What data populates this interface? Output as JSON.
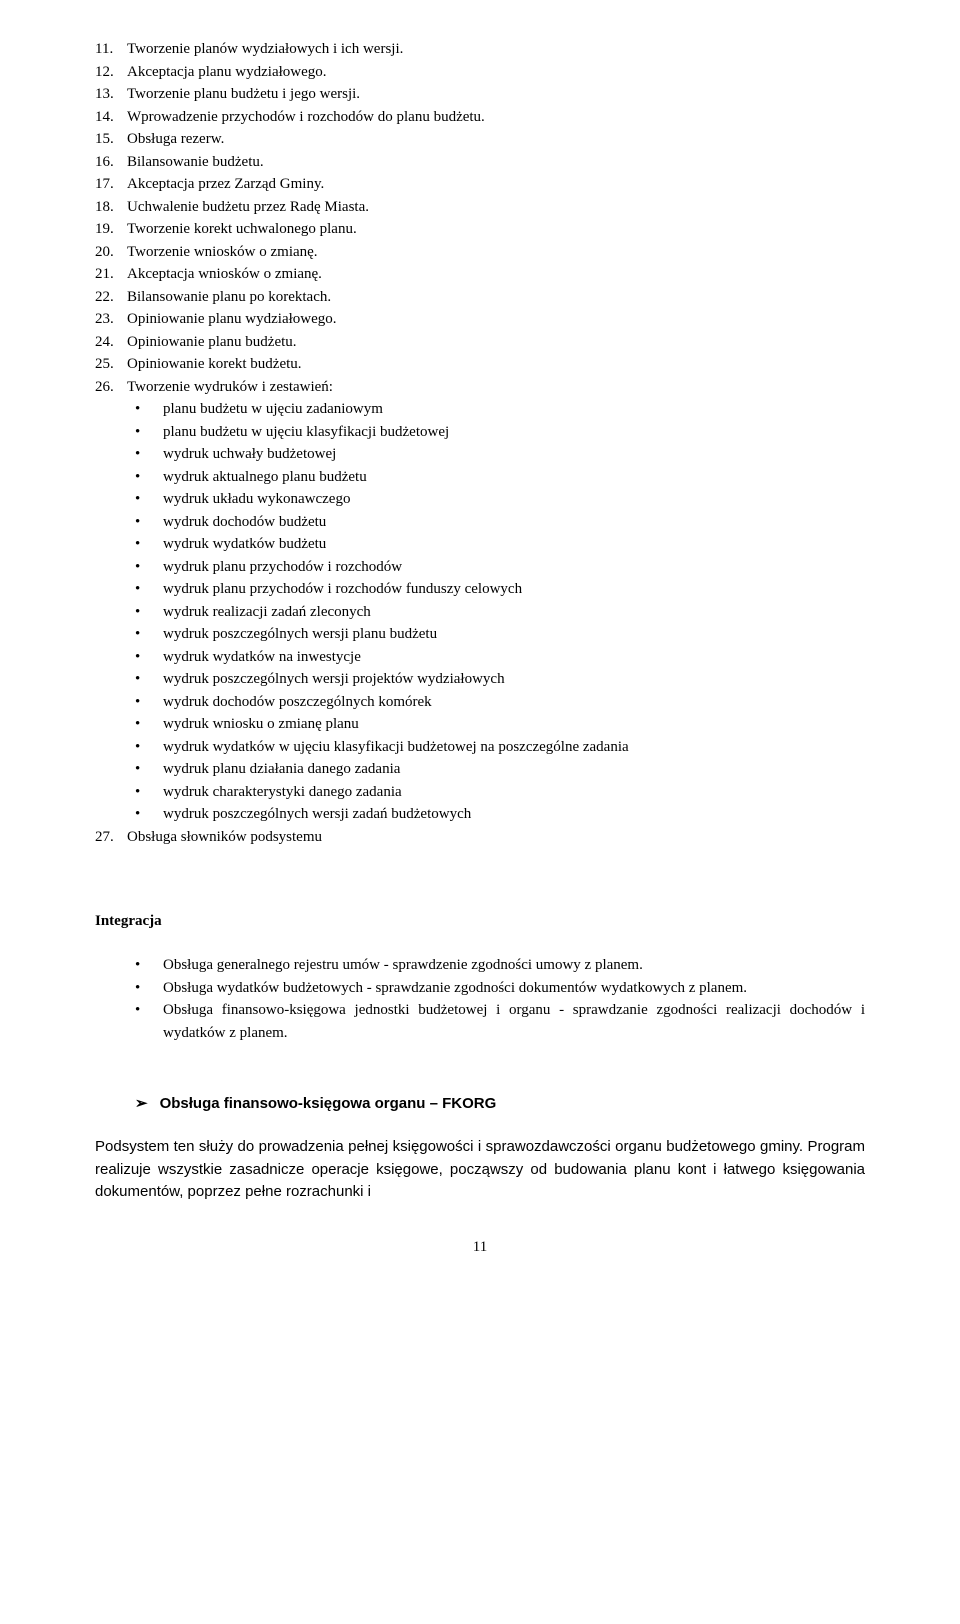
{
  "numberedItems": [
    {
      "num": "11.",
      "text": "Tworzenie planów wydziałowych i ich wersji."
    },
    {
      "num": "12.",
      "text": "Akceptacja planu wydziałowego."
    },
    {
      "num": "13.",
      "text": "Tworzenie planu budżetu i jego wersji."
    },
    {
      "num": "14.",
      "text": "Wprowadzenie przychodów i rozchodów do planu budżetu."
    },
    {
      "num": "15.",
      "text": "Obsługa rezerw."
    },
    {
      "num": "16.",
      "text": "Bilansowanie budżetu."
    },
    {
      "num": "17.",
      "text": "Akceptacja przez Zarząd Gminy."
    },
    {
      "num": "18.",
      "text": "Uchwalenie budżetu przez Radę Miasta."
    },
    {
      "num": "19.",
      "text": "Tworzenie korekt uchwalonego planu."
    },
    {
      "num": "20.",
      "text": "Tworzenie wniosków o zmianę."
    },
    {
      "num": "21.",
      "text": "Akceptacja wniosków o zmianę."
    },
    {
      "num": "22.",
      "text": "Bilansowanie planu po korektach."
    },
    {
      "num": "23.",
      "text": "Opiniowanie planu wydziałowego."
    },
    {
      "num": "24.",
      "text": "Opiniowanie planu budżetu."
    },
    {
      "num": "25.",
      "text": "Opiniowanie korekt budżetu."
    },
    {
      "num": "26.",
      "text": "Tworzenie wydruków i zestawień:"
    }
  ],
  "bulletItems": [
    "planu budżetu w ujęciu zadaniowym",
    "planu budżetu w ujęciu klasyfikacji budżetowej",
    "wydruk uchwały budżetowej",
    "wydruk aktualnego planu budżetu",
    "wydruk układu wykonawczego",
    "wydruk dochodów budżetu",
    "wydruk wydatków budżetu",
    "wydruk planu przychodów i rozchodów",
    "wydruk planu przychodów i rozchodów funduszy celowych",
    "wydruk realizacji zadań zleconych",
    "wydruk poszczególnych wersji planu budżetu",
    "wydruk wydatków na inwestycje",
    "wydruk poszczególnych wersji projektów wydziałowych",
    "wydruk dochodów poszczególnych komórek",
    "wydruk wniosku o zmianę planu",
    "wydruk wydatków w ujęciu klasyfikacji budżetowej na poszczególne zadania",
    "wydruk planu działania danego zadania",
    "wydruk charakterystyki danego zadania",
    "wydruk poszczególnych wersji zadań budżetowych"
  ],
  "finalNumberedItem": {
    "num": "27.",
    "text": "Obsługa słowników podsystemu"
  },
  "integrationHeading": "Integracja",
  "integrationItems": [
    "Obsługa generalnego rejestru umów - sprawdzenie zgodności umowy z planem.",
    "Obsługa wydatków budżetowych - sprawdzanie zgodności dokumentów wydatkowych z planem.",
    "Obsługa finansowo-księgowa jednostki budżetowej i organu - sprawdzanie zgodności realizacji dochodów i wydatków z planem."
  ],
  "arrowHeading": "Obsługa finansowo-księgowa organu – FKORG",
  "paragraph": "Podsystem ten służy do prowadzenia pełnej księgowości i sprawozdawczości organu budżetowego gminy. Program realizuje wszystkie zasadnicze operacje księgowe, począwszy od budowania planu kont i łatwego księgowania dokumentów, poprzez pełne rozrachunki i",
  "pageNumber": "11",
  "bulletChar": "•",
  "arrowChar": "➢"
}
